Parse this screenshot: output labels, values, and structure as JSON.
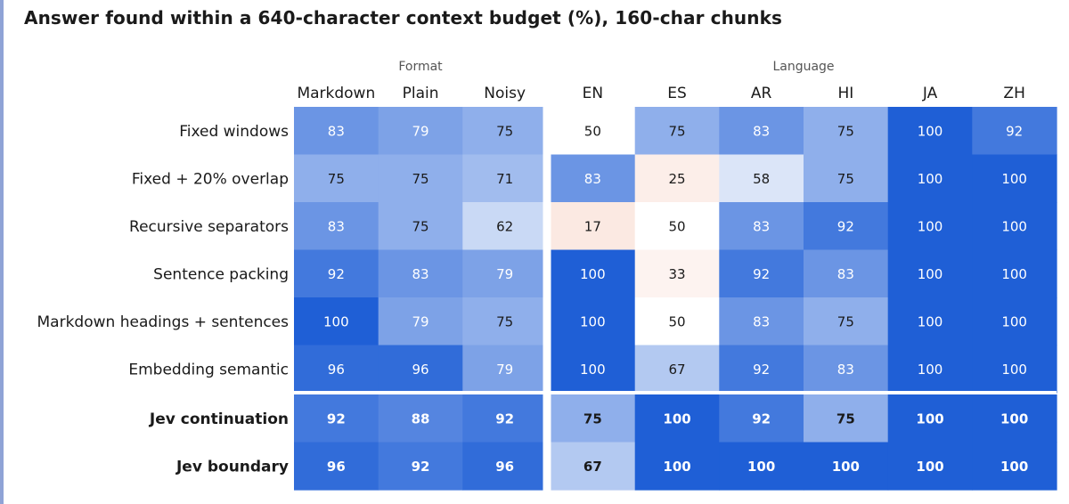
{
  "title": "Answer found within a 640-character context budget (%), 160-char chunks",
  "chart_data": {
    "type": "heatmap",
    "title": "Answer found within a 640-character context budget (%), 160-char chunks",
    "column_groups": [
      {
        "label": "Format",
        "columns": [
          "Markdown",
          "Plain",
          "Noisy"
        ]
      },
      {
        "label": "Language",
        "columns": [
          "EN",
          "ES",
          "AR",
          "HI",
          "JA",
          "ZH"
        ]
      }
    ],
    "columns": [
      "Markdown",
      "Plain",
      "Noisy",
      "EN",
      "ES",
      "AR",
      "HI",
      "JA",
      "ZH"
    ],
    "rows": [
      {
        "label": "Fixed windows",
        "bold": false,
        "values": [
          83,
          79,
          75,
          50,
          75,
          83,
          75,
          100,
          92
        ]
      },
      {
        "label": "Fixed + 20% overlap",
        "bold": false,
        "values": [
          75,
          75,
          71,
          83,
          25,
          58,
          75,
          100,
          100
        ]
      },
      {
        "label": "Recursive separators",
        "bold": false,
        "values": [
          83,
          75,
          62,
          17,
          50,
          83,
          92,
          100,
          100
        ]
      },
      {
        "label": "Sentence packing",
        "bold": false,
        "values": [
          92,
          83,
          79,
          100,
          33,
          92,
          83,
          100,
          100
        ]
      },
      {
        "label": "Markdown headings + sentences",
        "bold": false,
        "values": [
          100,
          79,
          75,
          100,
          50,
          83,
          75,
          100,
          100
        ]
      },
      {
        "label": "Embedding semantic",
        "bold": false,
        "values": [
          96,
          96,
          79,
          100,
          67,
          92,
          83,
          100,
          100
        ]
      },
      {
        "label": "Jev continuation",
        "bold": true,
        "values": [
          92,
          88,
          92,
          75,
          100,
          92,
          75,
          100,
          100
        ]
      },
      {
        "label": "Jev boundary",
        "bold": true,
        "values": [
          96,
          92,
          96,
          67,
          100,
          100,
          100,
          100,
          100
        ]
      }
    ],
    "color_scale": {
      "low": "#f9ddd3",
      "mid": "#ffffff",
      "high": "#1f5fd6",
      "mid_value": 50
    }
  }
}
